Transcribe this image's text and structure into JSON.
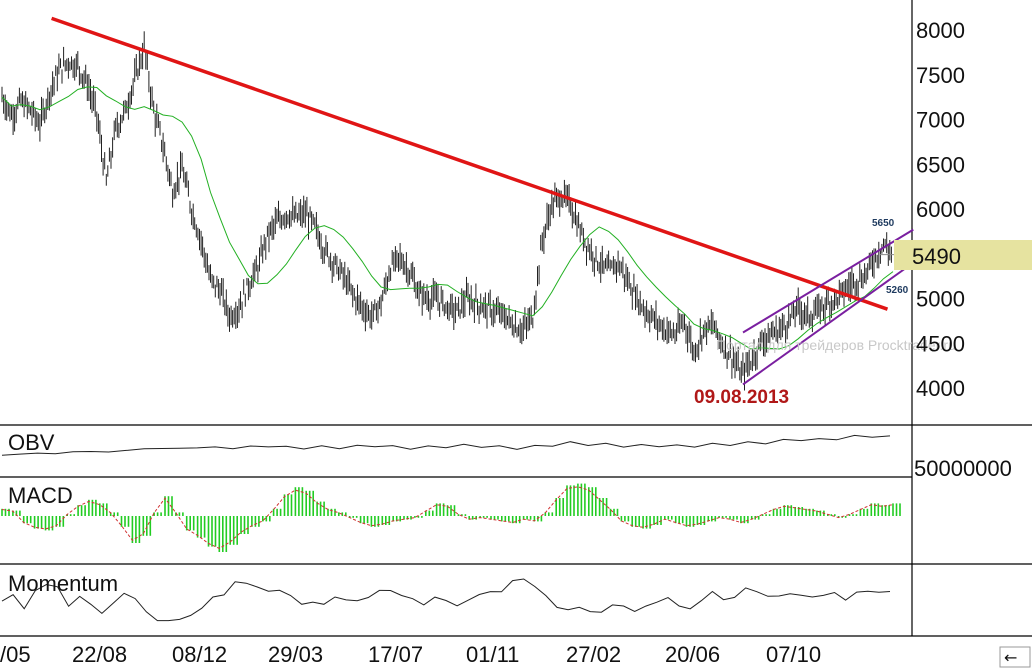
{
  "colors": {
    "price": "#222222",
    "ma": "#22b022",
    "trend": "#e01515",
    "channel": "#7a1fa0",
    "macd_hist": "#22cc22",
    "macd_signal": "#d03030",
    "highlight": "#e6e3a0",
    "grid": "#000000"
  },
  "watermark": "Портал для трейдеров  Procktrader.ru",
  "scroll_arrow": "←",
  "chart_data": [
    {
      "type": "line",
      "panel": "price",
      "title": "",
      "ylim": [
        3600,
        8200
      ],
      "yticks": [
        4000,
        4500,
        5000,
        5500,
        6000,
        6500,
        7000,
        7500,
        8000
      ],
      "x_tick_labels": [
        "/05",
        "22/08",
        "08/12",
        "29/03",
        "17/07",
        "01/11",
        "27/02",
        "20/06",
        "07/10"
      ],
      "current_value": 5490,
      "annotations": {
        "high": "5650",
        "low": "5260",
        "date": "09.08.2013"
      },
      "series": [
        {
          "values": [
            7250,
            7050,
            7200,
            7100,
            6950,
            7300,
            7550,
            7650,
            7600,
            7400,
            7050,
            6300,
            6900,
            7100,
            7450,
            7800,
            7100,
            6700,
            6200,
            6450,
            6000,
            5650,
            5200,
            5100,
            4800,
            4900,
            5150,
            5350,
            5700,
            5850,
            5950,
            5900,
            5950,
            5800,
            5550,
            5400,
            5250,
            5050,
            4900,
            4800,
            4950,
            5350,
            5450,
            5300,
            5050,
            5000,
            5000,
            4900,
            4850,
            5000,
            4950,
            4900,
            4850,
            4800,
            4700,
            4650,
            4800,
            5650,
            6050,
            6150,
            6050,
            5750,
            5550,
            5400,
            5300,
            5400,
            5200,
            5000,
            4850,
            4750,
            4650,
            4600,
            4750,
            4400,
            4650,
            4700,
            4500,
            4350,
            4150,
            4300,
            4500,
            4600,
            4650,
            4750,
            4900,
            4800,
            4850,
            4950,
            5000,
            5100,
            5200,
            5250,
            5450,
            5600,
            5500
          ]
        }
      ],
      "trendline": {
        "x": [
          0.05,
          0.86
        ],
        "y": [
          8130,
          4880
        ]
      },
      "channel_upper": {
        "x": [
          0.72,
          0.885
        ],
        "y": [
          4620,
          5770
        ]
      },
      "channel_lower": {
        "x": [
          0.72,
          0.885
        ],
        "y": [
          4040,
          5400
        ]
      }
    },
    {
      "type": "line",
      "panel": "obv",
      "title": "OBV",
      "ytick_label": "50000000",
      "values": [
        0.42,
        0.45,
        0.47,
        0.46,
        0.5,
        0.52,
        0.49,
        0.55,
        0.57,
        0.6,
        0.58,
        0.62,
        0.61,
        0.6,
        0.63,
        0.65,
        0.62,
        0.6,
        0.63,
        0.61,
        0.64,
        0.66,
        0.63,
        0.6,
        0.62,
        0.64,
        0.66,
        0.65,
        0.62,
        0.6,
        0.63,
        0.68,
        0.72,
        0.7,
        0.68,
        0.66,
        0.65,
        0.67,
        0.64,
        0.66,
        0.68,
        0.7,
        0.72,
        0.74,
        0.78,
        0.82,
        0.8,
        0.84,
        0.88,
        0.9,
        0.87
      ]
    },
    {
      "type": "bar",
      "panel": "macd",
      "title": "MACD",
      "values": [
        0.2,
        0.15,
        -0.2,
        -0.35,
        -0.4,
        -0.3,
        0.05,
        0.3,
        0.45,
        0.35,
        0.1,
        -0.3,
        -0.75,
        -0.55,
        0.1,
        0.55,
        0.1,
        -0.4,
        -0.6,
        -0.85,
        -1.0,
        -0.8,
        -0.5,
        -0.3,
        -0.15,
        0.2,
        0.6,
        0.8,
        0.7,
        0.4,
        0.2,
        0.1,
        -0.05,
        -0.2,
        -0.3,
        -0.25,
        -0.15,
        -0.1,
        -0.05,
        0.15,
        0.35,
        0.3,
        0.05,
        -0.1,
        -0.05,
        -0.1,
        -0.15,
        -0.2,
        -0.1,
        -0.15,
        0.1,
        0.5,
        0.85,
        0.9,
        0.8,
        0.5,
        0.2,
        -0.15,
        -0.3,
        -0.35,
        -0.25,
        -0.1,
        -0.2,
        -0.3,
        -0.25,
        -0.15,
        -0.05,
        -0.1,
        -0.2,
        -0.1,
        0.05,
        0.2,
        0.3,
        0.25,
        0.2,
        0.15,
        0.05,
        -0.05,
        0.05,
        0.2,
        0.35,
        0.3,
        0.35
      ]
    },
    {
      "type": "line",
      "panel": "momentum",
      "title": "Momentum",
      "values": [
        0.5,
        0.6,
        0.45,
        0.7,
        0.85,
        0.75,
        0.5,
        0.6,
        0.45,
        0.3,
        0.55,
        0.7,
        0.55,
        0.35,
        0.2,
        0.1,
        0.25,
        0.3,
        0.45,
        0.55,
        0.6,
        0.85,
        0.9,
        0.8,
        0.75,
        0.7,
        0.6,
        0.5,
        0.45,
        0.5,
        0.6,
        0.55,
        0.5,
        0.6,
        0.65,
        0.7,
        0.6,
        0.5,
        0.45,
        0.55,
        0.6,
        0.5,
        0.55,
        0.6,
        0.65,
        0.75,
        0.85,
        0.95,
        0.8,
        0.6,
        0.45,
        0.3,
        0.35,
        0.4,
        0.35,
        0.5,
        0.45,
        0.4,
        0.5,
        0.45,
        0.55,
        0.5,
        0.45,
        0.6,
        0.65,
        0.55,
        0.6,
        0.7,
        0.65,
        0.6,
        0.55,
        0.65,
        0.7,
        0.6,
        0.65,
        0.7,
        0.6,
        0.65,
        0.75,
        0.7,
        0.72
      ]
    }
  ]
}
